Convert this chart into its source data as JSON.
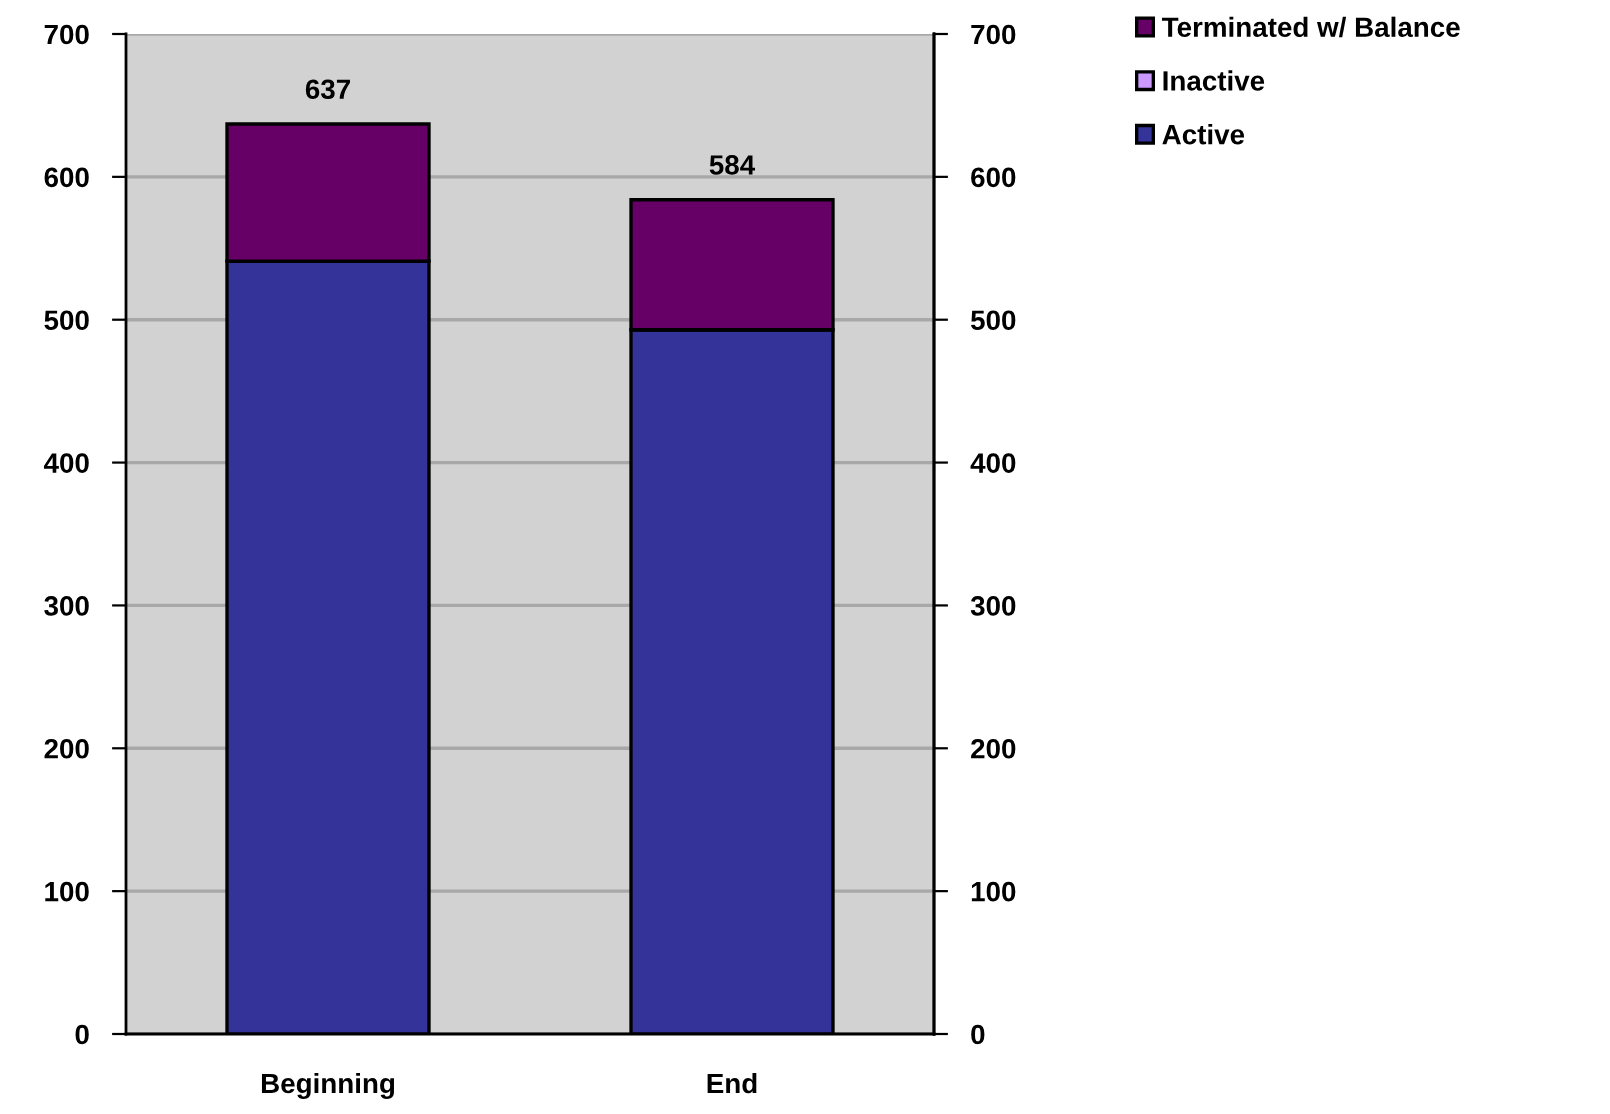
{
  "chart_data": {
    "type": "bar",
    "stacked": true,
    "categories": [
      "Beginning",
      "End"
    ],
    "series": [
      {
        "name": "Active",
        "color": "#333399",
        "values": [
          541,
          493
        ]
      },
      {
        "name": "Inactive",
        "color": "#cc99ff",
        "values": [
          0,
          0
        ]
      },
      {
        "name": "Terminated w/ Balance",
        "color": "#660066",
        "values": [
          96,
          91
        ]
      }
    ],
    "totals": [
      "637",
      "584"
    ],
    "ylim": [
      0,
      700
    ],
    "yticks": [
      0,
      100,
      200,
      300,
      400,
      500,
      600,
      700
    ],
    "y2lim": [
      0,
      700
    ],
    "y2ticks": [
      0,
      100,
      200,
      300,
      400,
      500,
      600,
      700
    ],
    "grid": "y",
    "legend": "top right"
  }
}
